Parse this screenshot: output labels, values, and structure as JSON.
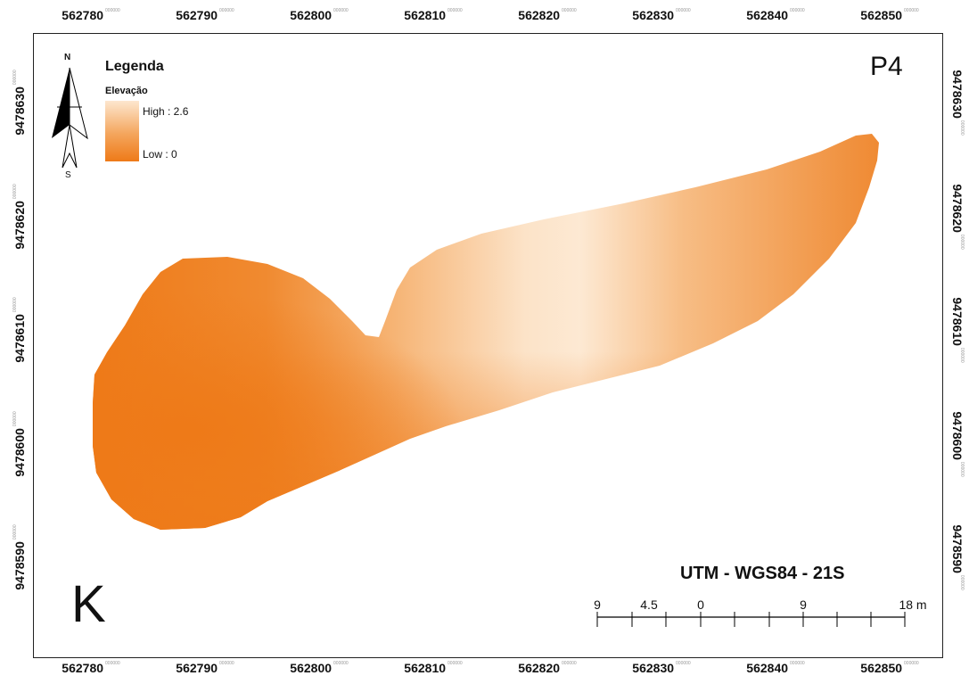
{
  "map": {
    "panel_label": "P4",
    "corner_letter": "K",
    "crs_text": "UTM - WGS84 - 21S",
    "legend": {
      "title": "Legenda",
      "field": "Elevação",
      "high_label": "High : 2.6",
      "low_label": "Low : 0",
      "colors": {
        "high": "#fde7cf",
        "mid": "#f4a55c",
        "low": "#ee7a18"
      }
    },
    "north_arrow": {
      "north": "N",
      "south": "S",
      "icon": "north-arrow-icon"
    },
    "x_ticks": [
      "562780",
      "562790",
      "562800",
      "562810",
      "562820",
      "562830",
      "562840",
      "562850"
    ],
    "y_ticks": [
      "9478630",
      "9478620",
      "9478610",
      "9478600",
      "9478590"
    ],
    "tick_suffix": "000000",
    "scale_bar": {
      "labels": [
        "9",
        "4.5",
        "0",
        "9",
        "18 m"
      ]
    }
  }
}
